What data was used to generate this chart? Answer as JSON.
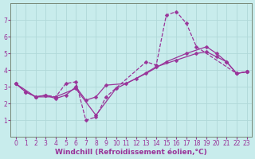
{
  "background_color": "#c8ecec",
  "grid_color": "#b0d8d8",
  "line_color": "#993399",
  "markersize": 2.5,
  "linewidth": 0.9,
  "xlabel": "Windchill (Refroidissement éolien,°C)",
  "xlabel_fontsize": 6.5,
  "tick_fontsize": 5.5,
  "xlim": [
    -0.5,
    23.5
  ],
  "ylim": [
    0,
    8
  ],
  "yticks": [
    1,
    2,
    3,
    4,
    5,
    6,
    7
  ],
  "xticks": [
    0,
    1,
    2,
    3,
    4,
    5,
    6,
    7,
    8,
    9,
    10,
    11,
    12,
    13,
    14,
    15,
    16,
    17,
    18,
    19,
    20,
    21,
    22,
    23
  ],
  "series1": [
    [
      0,
      3.2
    ],
    [
      1,
      2.7
    ],
    [
      2,
      2.4
    ],
    [
      3,
      2.5
    ],
    [
      4,
      2.4
    ],
    [
      5,
      3.2
    ],
    [
      6,
      3.3
    ],
    [
      7,
      1.0
    ],
    [
      8,
      1.2
    ],
    [
      9,
      2.4
    ],
    [
      13,
      4.5
    ],
    [
      14,
      4.3
    ],
    [
      15,
      7.3
    ],
    [
      16,
      7.5
    ],
    [
      17,
      6.8
    ],
    [
      18,
      5.4
    ],
    [
      22,
      3.8
    ],
    [
      23,
      3.9
    ]
  ],
  "series2": [
    [
      0,
      3.2
    ],
    [
      1,
      2.7
    ],
    [
      2,
      2.4
    ],
    [
      3,
      2.5
    ],
    [
      4,
      2.3
    ],
    [
      5,
      2.5
    ],
    [
      6,
      3.0
    ],
    [
      7,
      2.2
    ],
    [
      8,
      2.4
    ],
    [
      9,
      3.1
    ],
    [
      11,
      3.2
    ],
    [
      13,
      3.8
    ],
    [
      15,
      4.5
    ],
    [
      17,
      5.0
    ],
    [
      19,
      5.4
    ],
    [
      20,
      5.0
    ],
    [
      21,
      4.5
    ],
    [
      22,
      3.8
    ],
    [
      23,
      3.9
    ]
  ],
  "series3": [
    [
      0,
      3.2
    ],
    [
      2,
      2.4
    ],
    [
      4,
      2.4
    ],
    [
      6,
      2.9
    ],
    [
      8,
      1.3
    ],
    [
      10,
      2.9
    ],
    [
      12,
      3.5
    ],
    [
      14,
      4.2
    ],
    [
      16,
      4.6
    ],
    [
      18,
      5.0
    ],
    [
      19,
      5.1
    ],
    [
      20,
      4.8
    ],
    [
      21,
      4.5
    ],
    [
      22,
      3.8
    ],
    [
      23,
      3.9
    ]
  ]
}
